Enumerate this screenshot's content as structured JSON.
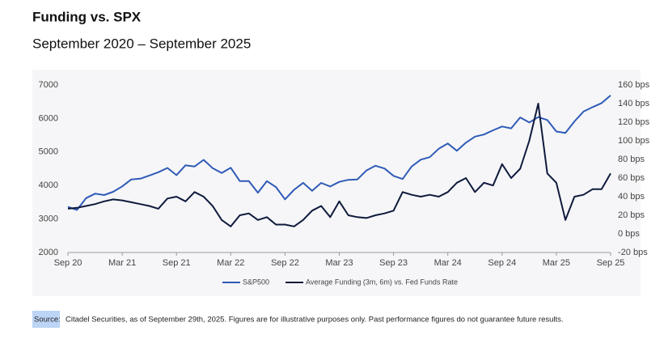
{
  "title": "Funding vs. SPX",
  "subtitle": "September 2020 – September 2025",
  "chart_data": {
    "type": "line",
    "categories": [
      "Sep 20",
      null,
      null,
      null,
      null,
      null,
      "Mar 21",
      null,
      null,
      null,
      null,
      null,
      "Sep 21",
      null,
      null,
      null,
      null,
      null,
      "Mar 22",
      null,
      null,
      null,
      null,
      null,
      "Sep 22",
      null,
      null,
      null,
      null,
      null,
      "Mar 23",
      null,
      null,
      null,
      null,
      null,
      "Sep 23",
      null,
      null,
      null,
      null,
      null,
      "Mar 24",
      null,
      null,
      null,
      null,
      null,
      "Sep 24",
      null,
      null,
      null,
      null,
      null,
      "Mar 25",
      null,
      null,
      null,
      null,
      null,
      "Sep 25"
    ],
    "series": [
      {
        "name": "S&P500",
        "color": "#2f5bb7",
        "values": [
          3363,
          3270,
          3622,
          3756,
          3714,
          3811,
          3973,
          4181,
          4204,
          4298,
          4395,
          4523,
          4308,
          4605,
          4567,
          4766,
          4516,
          4374,
          4530,
          4132,
          4132,
          3785,
          4130,
          3955,
          3586,
          3872,
          4080,
          3840,
          4077,
          3970,
          4109,
          4169,
          4180,
          4450,
          4589,
          4508,
          4288,
          4194,
          4568,
          4770,
          4846,
          5096,
          5254,
          5036,
          5278,
          5460,
          5522,
          5648,
          5762,
          5705,
          6032,
          5882,
          6041,
          5955,
          5612,
          5569,
          5912,
          6205,
          6339,
          6460,
          6688
        ]
      },
      {
        "name": "Average Funding (3m, 6m) vs. Fed Funds Rate",
        "color": "#0f1a3c",
        "axis": "y2",
        "values": [
          27,
          28,
          30,
          32,
          35,
          37,
          36,
          34,
          32,
          30,
          27,
          38,
          40,
          35,
          45,
          40,
          30,
          15,
          8,
          20,
          22,
          15,
          18,
          10,
          10,
          8,
          15,
          25,
          30,
          18,
          35,
          20,
          18,
          17,
          20,
          22,
          25,
          45,
          42,
          40,
          42,
          40,
          45,
          55,
          60,
          45,
          55,
          52,
          75,
          60,
          70,
          100,
          140,
          65,
          55,
          15,
          40,
          42,
          48,
          48,
          65
        ]
      }
    ],
    "ylim": [
      2000,
      7000
    ],
    "yticks": [
      2000,
      3000,
      4000,
      5000,
      6000,
      7000
    ],
    "y2lim": [
      -20,
      160
    ],
    "y2ticks": [
      {
        "value": -20,
        "label": "-20 bps"
      },
      {
        "value": 0,
        "label": "0 bps"
      },
      {
        "value": 20,
        "label": "20 bps"
      },
      {
        "value": 40,
        "label": "40 bps"
      },
      {
        "value": 60,
        "label": "60 bps"
      },
      {
        "value": 80,
        "label": "80 bps"
      },
      {
        "value": 100,
        "label": "100 bps"
      },
      {
        "value": 120,
        "label": "120 bps"
      },
      {
        "value": 140,
        "label": "140 bps"
      },
      {
        "value": 160,
        "label": "160 bps"
      }
    ],
    "legend": "bottom"
  },
  "source": {
    "label": "Source:",
    "text": "Citadel Securities, as of September 29th, 2025. Figures are for illustrative purposes only. Past performance figures do not guarantee future results."
  }
}
